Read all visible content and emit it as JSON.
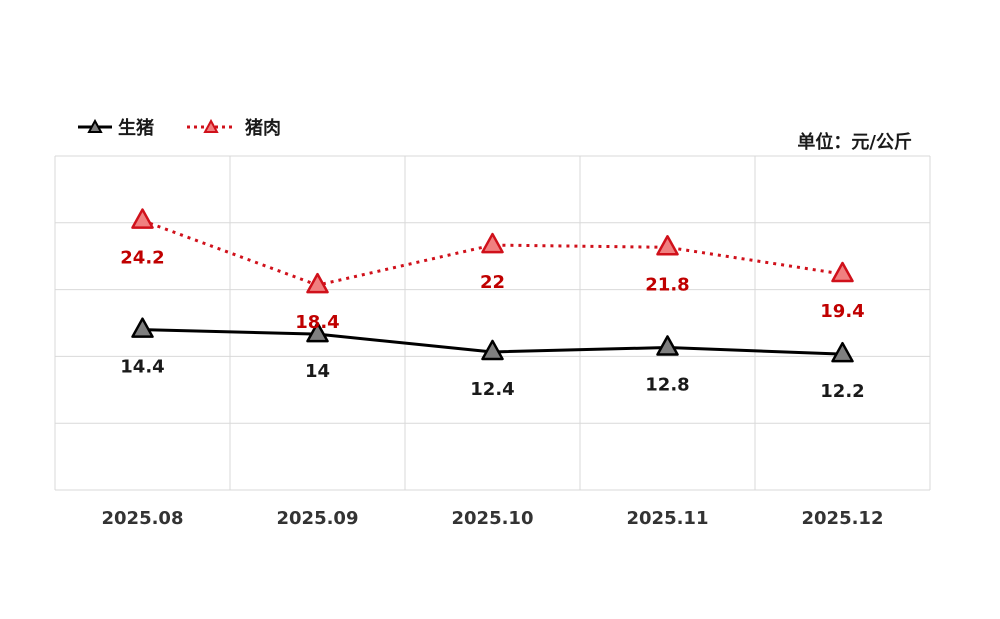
{
  "chart_data": {
    "type": "line",
    "categories": [
      "2025.08",
      "2025.09",
      "2025.10",
      "2025.11",
      "2025.12"
    ],
    "unit": "单位：元/公斤",
    "series": [
      {
        "name": "生猪",
        "values": [
          14.4,
          14,
          12.4,
          12.8,
          12.2
        ],
        "line_style": "solid",
        "color": "#000000",
        "marker_fill": "#7f7f7f",
        "label_color": "#1a1a1a"
      },
      {
        "name": "猪肉",
        "values": [
          24.2,
          18.4,
          22,
          21.8,
          19.4
        ],
        "line_style": "dotted",
        "color": "#d0111b",
        "marker_fill": "#f08080",
        "label_color": "#c00000"
      }
    ],
    "ylim": [
      0,
      30
    ],
    "grid": true,
    "legend_position": "top-left"
  }
}
